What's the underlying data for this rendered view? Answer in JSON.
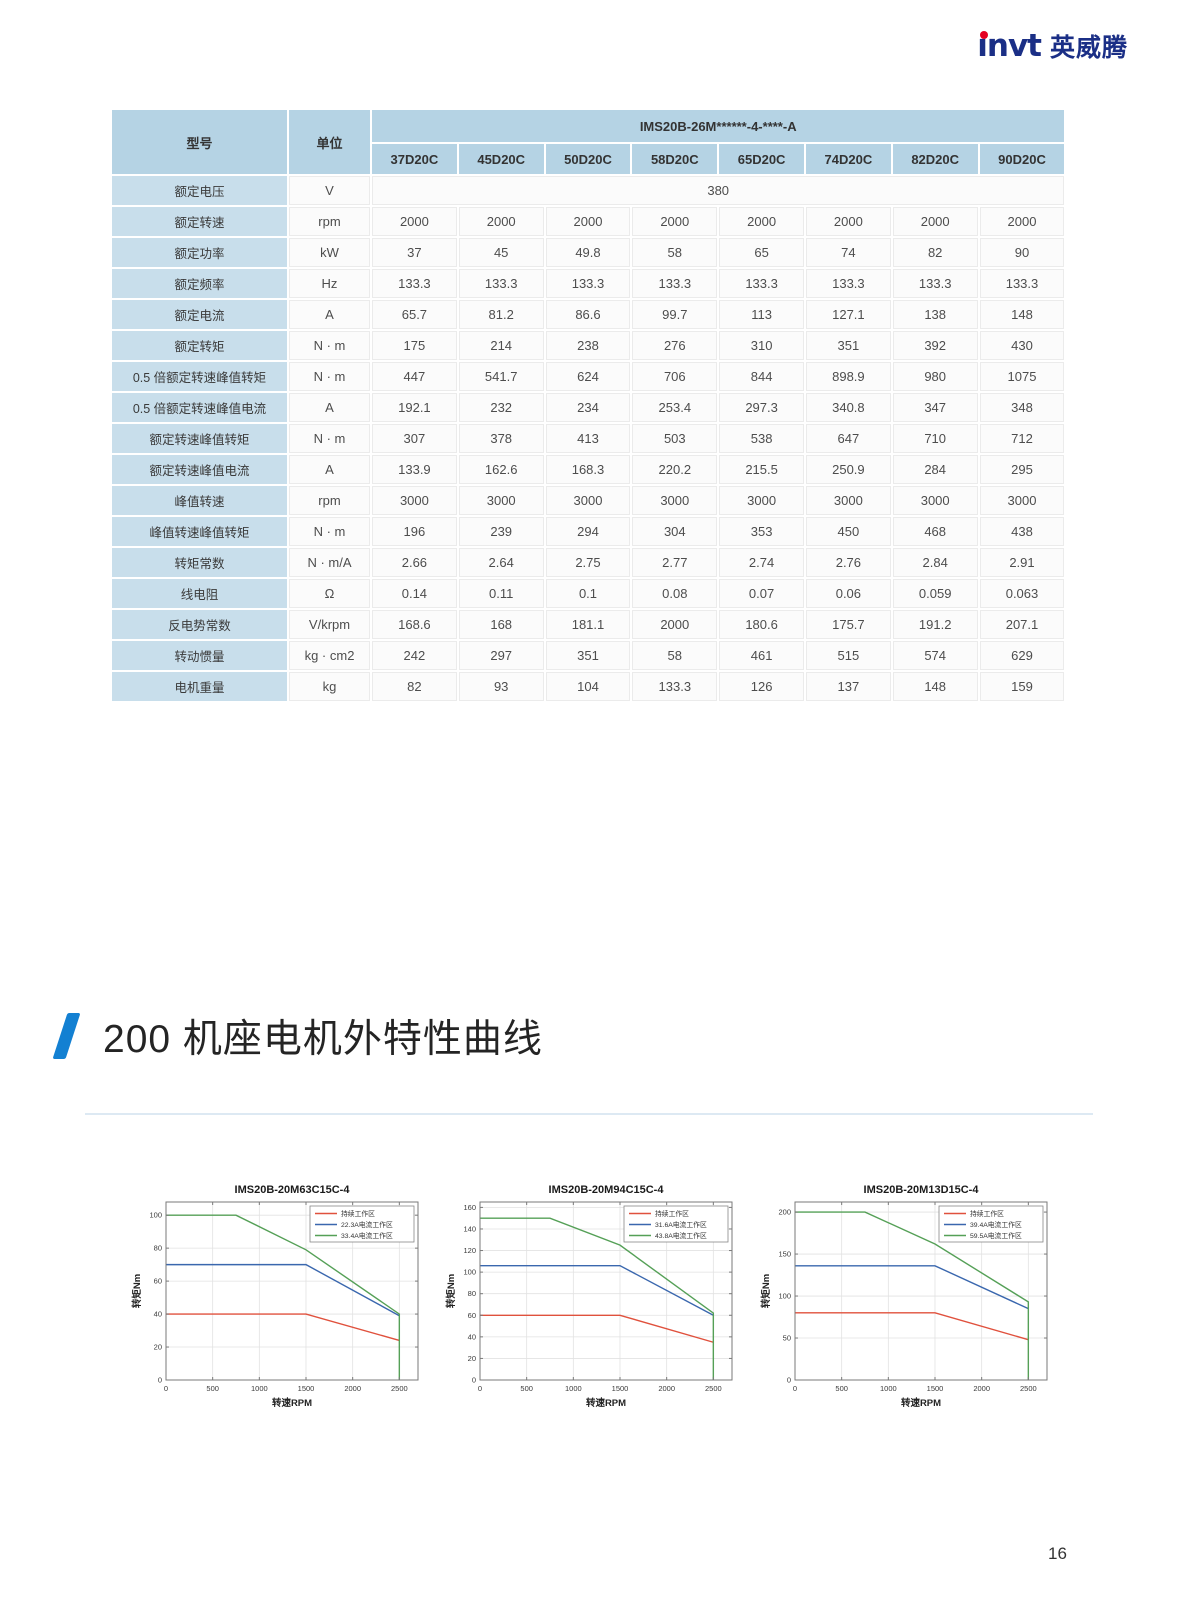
{
  "logo": {
    "brand": "invt",
    "brand_cn": "英威腾"
  },
  "page": {
    "number": "16"
  },
  "spec_table": {
    "col_model": "型号",
    "col_unit": "单位",
    "series_header": "IMS20B-26M******-4-****-A",
    "models": [
      "37D20C",
      "45D20C",
      "50D20C",
      "58D20C",
      "65D20C",
      "74D20C",
      "82D20C",
      "90D20C"
    ],
    "rows": [
      {
        "label": "额定电压",
        "unit": "V",
        "span_value": "380"
      },
      {
        "label": "额定转速",
        "unit": "rpm",
        "values": [
          "2000",
          "2000",
          "2000",
          "2000",
          "2000",
          "2000",
          "2000",
          "2000"
        ]
      },
      {
        "label": "额定功率",
        "unit": "kW",
        "values": [
          "37",
          "45",
          "49.8",
          "58",
          "65",
          "74",
          "82",
          "90"
        ]
      },
      {
        "label": "额定频率",
        "unit": "Hz",
        "values": [
          "133.3",
          "133.3",
          "133.3",
          "133.3",
          "133.3",
          "133.3",
          "133.3",
          "133.3"
        ]
      },
      {
        "label": "额定电流",
        "unit": "A",
        "values": [
          "65.7",
          "81.2",
          "86.6",
          "99.7",
          "113",
          "127.1",
          "138",
          "148"
        ]
      },
      {
        "label": "额定转矩",
        "unit": "N · m",
        "values": [
          "175",
          "214",
          "238",
          "276",
          "310",
          "351",
          "392",
          "430"
        ]
      },
      {
        "label": "0.5 倍额定转速峰值转矩",
        "unit": "N · m",
        "values": [
          "447",
          "541.7",
          "624",
          "706",
          "844",
          "898.9",
          "980",
          "1075"
        ]
      },
      {
        "label": "0.5 倍额定转速峰值电流",
        "unit": "A",
        "values": [
          "192.1",
          "232",
          "234",
          "253.4",
          "297.3",
          "340.8",
          "347",
          "348"
        ]
      },
      {
        "label": "额定转速峰值转矩",
        "unit": "N · m",
        "values": [
          "307",
          "378",
          "413",
          "503",
          "538",
          "647",
          "710",
          "712"
        ]
      },
      {
        "label": "额定转速峰值电流",
        "unit": "A",
        "values": [
          "133.9",
          "162.6",
          "168.3",
          "220.2",
          "215.5",
          "250.9",
          "284",
          "295"
        ]
      },
      {
        "label": "峰值转速",
        "unit": "rpm",
        "values": [
          "3000",
          "3000",
          "3000",
          "3000",
          "3000",
          "3000",
          "3000",
          "3000"
        ]
      },
      {
        "label": "峰值转速峰值转矩",
        "unit": "N · m",
        "values": [
          "196",
          "239",
          "294",
          "304",
          "353",
          "450",
          "468",
          "438"
        ]
      },
      {
        "label": "转矩常数",
        "unit": "N · m/A",
        "values": [
          "2.66",
          "2.64",
          "2.75",
          "2.77",
          "2.74",
          "2.76",
          "2.84",
          "2.91"
        ]
      },
      {
        "label": "线电阻",
        "unit": "Ω",
        "values": [
          "0.14",
          "0.11",
          "0.1",
          "0.08",
          "0.07",
          "0.06",
          "0.059",
          "0.063"
        ]
      },
      {
        "label": "反电势常数",
        "unit": "V/krpm",
        "values": [
          "168.6",
          "168",
          "181.1",
          "2000",
          "180.6",
          "175.7",
          "191.2",
          "207.1"
        ]
      },
      {
        "label": "转动惯量",
        "unit": "kg · cm2",
        "values": [
          "242",
          "297",
          "351",
          "58",
          "461",
          "515",
          "574",
          "629"
        ]
      },
      {
        "label": "电机重量",
        "unit": "kg",
        "values": [
          "82",
          "93",
          "104",
          "133.3",
          "126",
          "137",
          "148",
          "159"
        ]
      }
    ]
  },
  "section": {
    "title": "200 机座电机外特性曲线"
  },
  "chart_data": [
    {
      "type": "line",
      "title": "IMS20B-20M63C15C-4",
      "xlabel": "转速RPM",
      "ylabel": "转矩Nm",
      "xlim": [
        0,
        2700
      ],
      "ylim": [
        0,
        108
      ],
      "xticks": [
        0,
        500,
        1000,
        1500,
        2000,
        2500
      ],
      "yticks": [
        0,
        20,
        40,
        60,
        80,
        100
      ],
      "grid": true,
      "legend_position": "top-right",
      "series": [
        {
          "name": "持续工作区",
          "color": "#e0513d",
          "points": [
            [
              0,
              40
            ],
            [
              1500,
              40
            ],
            [
              2500,
              24
            ]
          ]
        },
        {
          "name": "22.3A电流工作区",
          "color": "#3a67ae",
          "points": [
            [
              0,
              70
            ],
            [
              1500,
              70
            ],
            [
              2500,
              39
            ]
          ]
        },
        {
          "name": "33.4A电流工作区",
          "color": "#55a057",
          "points": [
            [
              0,
              100
            ],
            [
              750,
              100
            ],
            [
              1500,
              79
            ],
            [
              2500,
              40
            ],
            [
              2500,
              0
            ]
          ]
        }
      ]
    },
    {
      "type": "line",
      "title": "IMS20B-20M94C15C-4",
      "xlabel": "转速RPM",
      "ylabel": "转矩Nm",
      "xlim": [
        0,
        2700
      ],
      "ylim": [
        0,
        165
      ],
      "xticks": [
        0,
        500,
        1000,
        1500,
        2000,
        2500
      ],
      "yticks": [
        0,
        20,
        40,
        60,
        80,
        100,
        120,
        140,
        160
      ],
      "grid": true,
      "legend_position": "top-right",
      "series": [
        {
          "name": "持续工作区",
          "color": "#e0513d",
          "points": [
            [
              0,
              60
            ],
            [
              1500,
              60
            ],
            [
              2500,
              35
            ]
          ]
        },
        {
          "name": "31.6A电流工作区",
          "color": "#3a67ae",
          "points": [
            [
              0,
              106
            ],
            [
              1500,
              106
            ],
            [
              2500,
              60
            ]
          ]
        },
        {
          "name": "43.8A电流工作区",
          "color": "#55a057",
          "points": [
            [
              0,
              150
            ],
            [
              750,
              150
            ],
            [
              1500,
              125
            ],
            [
              2500,
              62
            ],
            [
              2500,
              0
            ]
          ]
        }
      ]
    },
    {
      "type": "line",
      "title": "IMS20B-20M13D15C-4",
      "xlabel": "转速RPM",
      "ylabel": "转矩Nm",
      "xlim": [
        0,
        2700
      ],
      "ylim": [
        0,
        212
      ],
      "xticks": [
        0,
        500,
        1000,
        1500,
        2000,
        2500
      ],
      "yticks": [
        0,
        50,
        100,
        150,
        200
      ],
      "grid": true,
      "legend_position": "top-right",
      "series": [
        {
          "name": "持续工作区",
          "color": "#e0513d",
          "points": [
            [
              0,
              80
            ],
            [
              1500,
              80
            ],
            [
              2500,
              48
            ]
          ]
        },
        {
          "name": "39.4A电流工作区",
          "color": "#3a67ae",
          "points": [
            [
              0,
              136
            ],
            [
              1500,
              136
            ],
            [
              2500,
              85
            ]
          ]
        },
        {
          "name": "59.5A电流工作区",
          "color": "#55a057",
          "points": [
            [
              0,
              200
            ],
            [
              750,
              200
            ],
            [
              1500,
              162
            ],
            [
              2500,
              93
            ],
            [
              2500,
              0
            ]
          ]
        }
      ]
    }
  ]
}
